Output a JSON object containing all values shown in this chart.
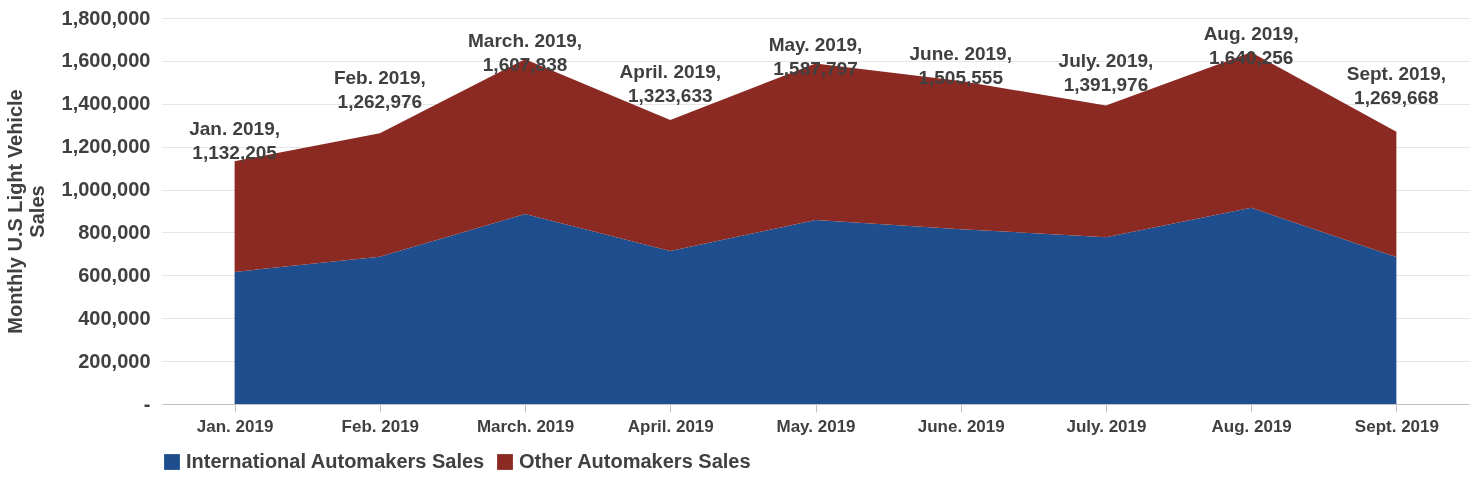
{
  "chart_data": {
    "type": "area",
    "stacked": true,
    "ylabel": "Monthly U.S Light Vehicle\nSales",
    "categories": [
      "Jan. 2019",
      "Feb. 2019",
      "March. 2019",
      "April. 2019",
      "May. 2019",
      "June. 2019",
      "July. 2019",
      "Aug. 2019",
      "Sept. 2019"
    ],
    "series": [
      {
        "name": "International Automakers Sales",
        "color": "#1f4e8f",
        "values": [
          616000,
          687000,
          886000,
          713000,
          858000,
          815000,
          778000,
          915000,
          685000
        ]
      },
      {
        "name": "Other Automakers Sales",
        "color": "#8b2a23",
        "values": [
          516000,
          576000,
          722000,
          611000,
          730000,
          691000,
          614000,
          725000,
          585000
        ]
      }
    ],
    "totals": [
      "Jan. 2019,\n1,132,205",
      "Feb. 2019,\n1,262,976",
      "March. 2019,\n1,607,838",
      "April. 2019,\n1,323,633",
      "May. 2019,\n1,587,797",
      "June. 2019,\n1,505,555",
      "July. 2019,\n1,391,976",
      "Aug. 2019,\n1,640,256",
      "Sept. 2019,\n1,269,668"
    ],
    "ylim": [
      0,
      1800000
    ],
    "yticks": [
      {
        "value": 0,
        "label": "-"
      },
      {
        "value": 200000,
        "label": "200,000"
      },
      {
        "value": 400000,
        "label": "400,000"
      },
      {
        "value": 600000,
        "label": "600,000"
      },
      {
        "value": 800000,
        "label": "800,000"
      },
      {
        "value": 1000000,
        "label": "1,000,000"
      },
      {
        "value": 1200000,
        "label": "1,200,000"
      },
      {
        "value": 1400000,
        "label": "1,400,000"
      },
      {
        "value": 1600000,
        "label": "1,600,000"
      },
      {
        "value": 1800000,
        "label": "1,800,000"
      }
    ],
    "grid": "y",
    "legend": "bottom"
  }
}
